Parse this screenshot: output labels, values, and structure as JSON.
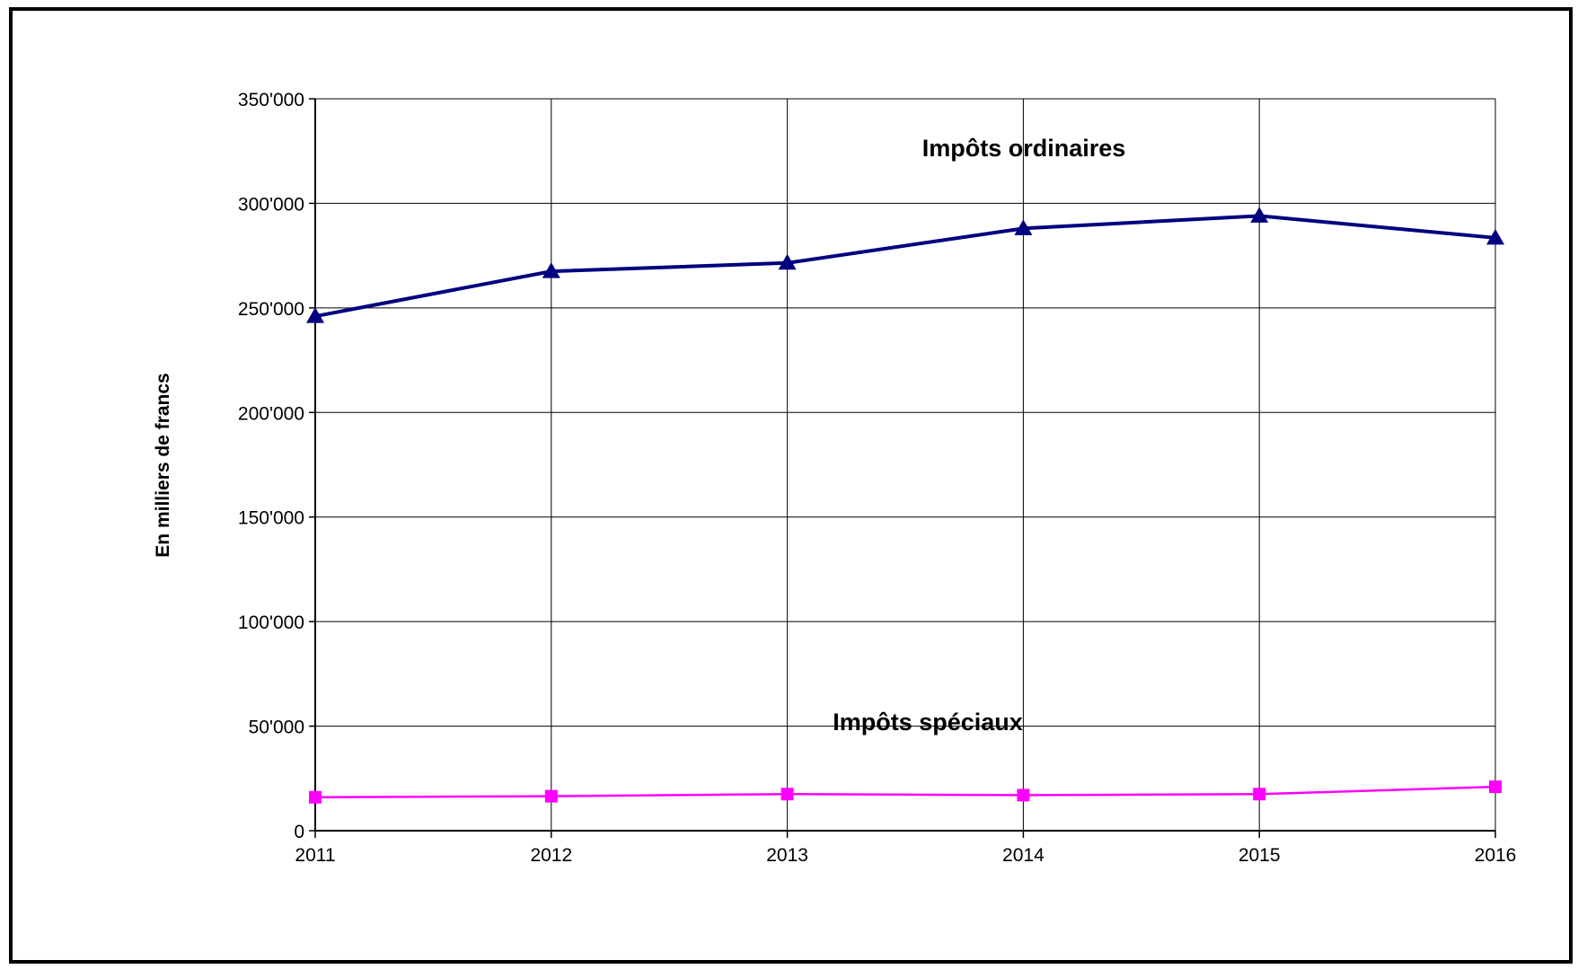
{
  "chart_data": {
    "type": "line",
    "title": "",
    "xlabel": "",
    "ylabel": "En  milliers  de  francs",
    "x": [
      "2011",
      "2012",
      "2013",
      "2014",
      "2015",
      "2016"
    ],
    "ylim": [
      0,
      350000
    ],
    "yticks": [
      0,
      50000,
      100000,
      150000,
      200000,
      250000,
      300000,
      350000
    ],
    "ytick_labels": [
      "0",
      "50'000",
      "100'000",
      "150'000",
      "200'000",
      "250'000",
      "300'000",
      "350'000"
    ],
    "grid": true,
    "legend": "none (series labelled directly on chart)",
    "series": [
      {
        "name": "Impôts ordinaires",
        "color": "#000080",
        "marker": "triangle",
        "values": [
          246000,
          267500,
          271500,
          288000,
          294000,
          283500
        ]
      },
      {
        "name": "Impôts spéciaux",
        "color": "#ff00ff",
        "marker": "square",
        "values": [
          16000,
          16500,
          17500,
          17000,
          17500,
          21000
        ]
      }
    ]
  }
}
